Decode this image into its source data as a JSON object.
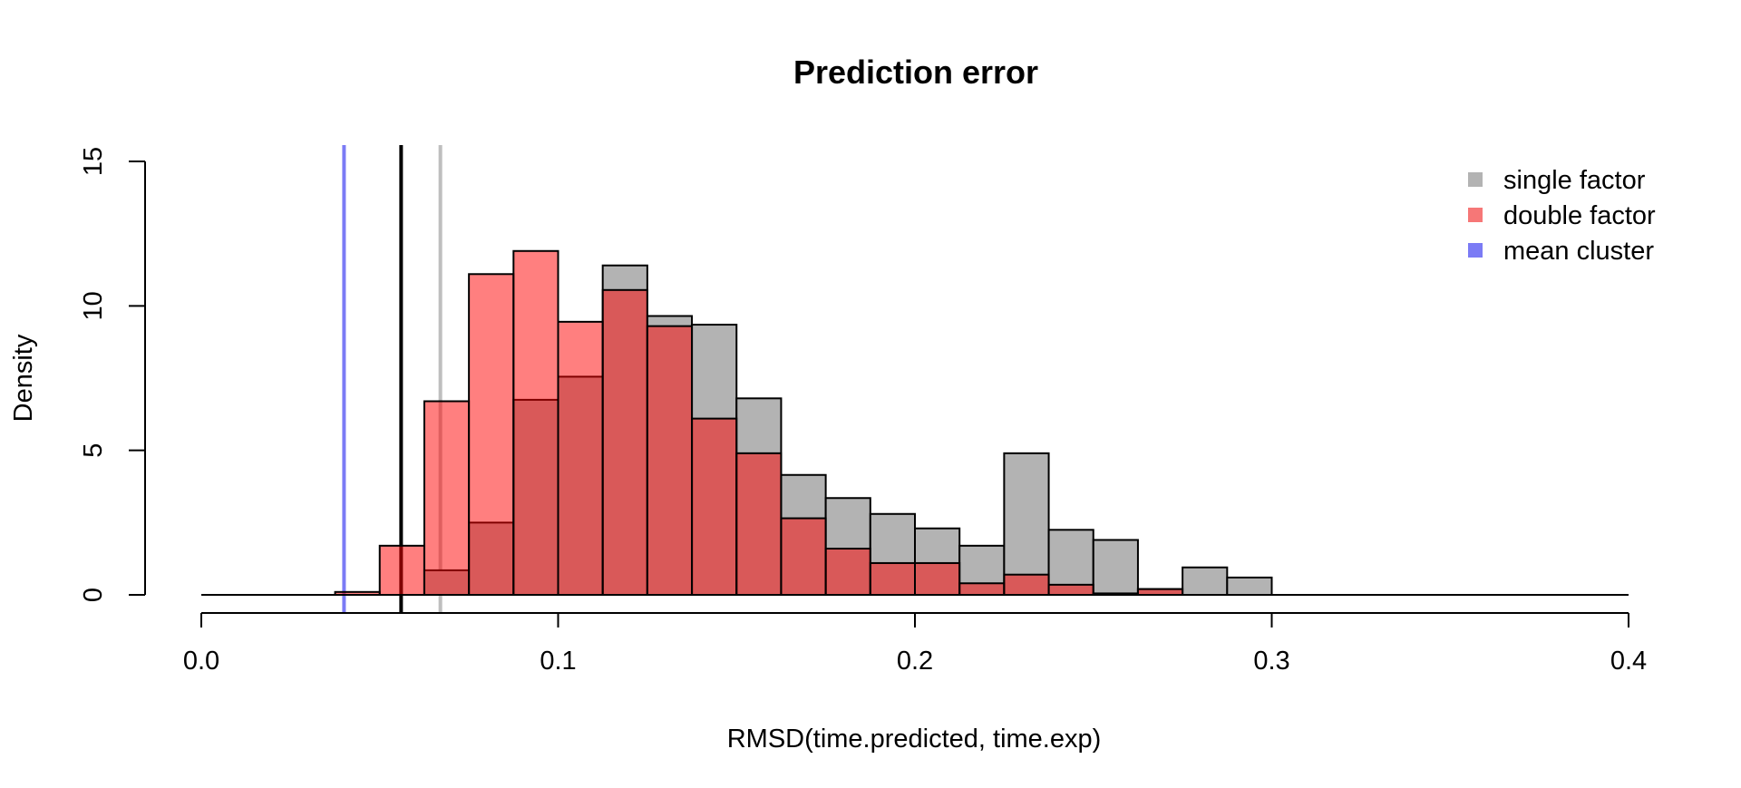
{
  "chart_data": {
    "type": "bar",
    "title": "Prediction error",
    "xlabel": "RMSD(time.predicted, time.exp)",
    "ylabel": "Density",
    "xlim": [
      0.0,
      0.4
    ],
    "ylim": [
      0,
      15
    ],
    "x_ticks": [
      "0.0",
      "0.1",
      "0.2",
      "0.3",
      "0.4"
    ],
    "y_ticks": [
      "0",
      "5",
      "10",
      "15"
    ],
    "bin_width": 0.0125,
    "grid": false,
    "legend_position": "top-right",
    "series": [
      {
        "name": "single factor",
        "color": "#b3b3b3",
        "bin_starts": [
          0.0625,
          0.075,
          0.0875,
          0.1,
          0.1125,
          0.125,
          0.1375,
          0.15,
          0.1625,
          0.175,
          0.1875,
          0.2,
          0.2125,
          0.225,
          0.2375,
          0.25,
          0.2625,
          0.275,
          0.2875
        ],
        "values": [
          0.85,
          2.5,
          6.75,
          7.55,
          11.4,
          9.65,
          9.35,
          6.8,
          4.15,
          3.35,
          2.8,
          2.3,
          1.7,
          4.9,
          2.25,
          1.9,
          0.2,
          0.95,
          0.6
        ]
      },
      {
        "name": "double factor",
        "color": "#ff0000",
        "opacity": 0.5,
        "bin_starts": [
          0.0375,
          0.05,
          0.0625,
          0.075,
          0.0875,
          0.1,
          0.1125,
          0.125,
          0.1375,
          0.15,
          0.1625,
          0.175,
          0.1875,
          0.2,
          0.2125,
          0.225,
          0.2375,
          0.25,
          0.2625
        ],
        "values": [
          0.1,
          1.7,
          6.7,
          11.1,
          11.9,
          9.45,
          10.55,
          9.3,
          6.1,
          4.9,
          2.65,
          1.6,
          1.1,
          1.1,
          0.4,
          0.7,
          0.35,
          0.05,
          0.2
        ]
      }
    ],
    "reference_lines": [
      {
        "name": "mean cluster",
        "x": 0.04,
        "color": "#7b7bf5"
      },
      {
        "x": 0.056,
        "color": "#000000"
      },
      {
        "x": 0.067,
        "color": "#bebebe"
      }
    ],
    "legend": [
      {
        "label": "single factor",
        "color": "#b3b3b3"
      },
      {
        "label": "double factor",
        "color": "#f67777"
      },
      {
        "label": "mean cluster",
        "color": "#7b7bf5"
      }
    ]
  }
}
